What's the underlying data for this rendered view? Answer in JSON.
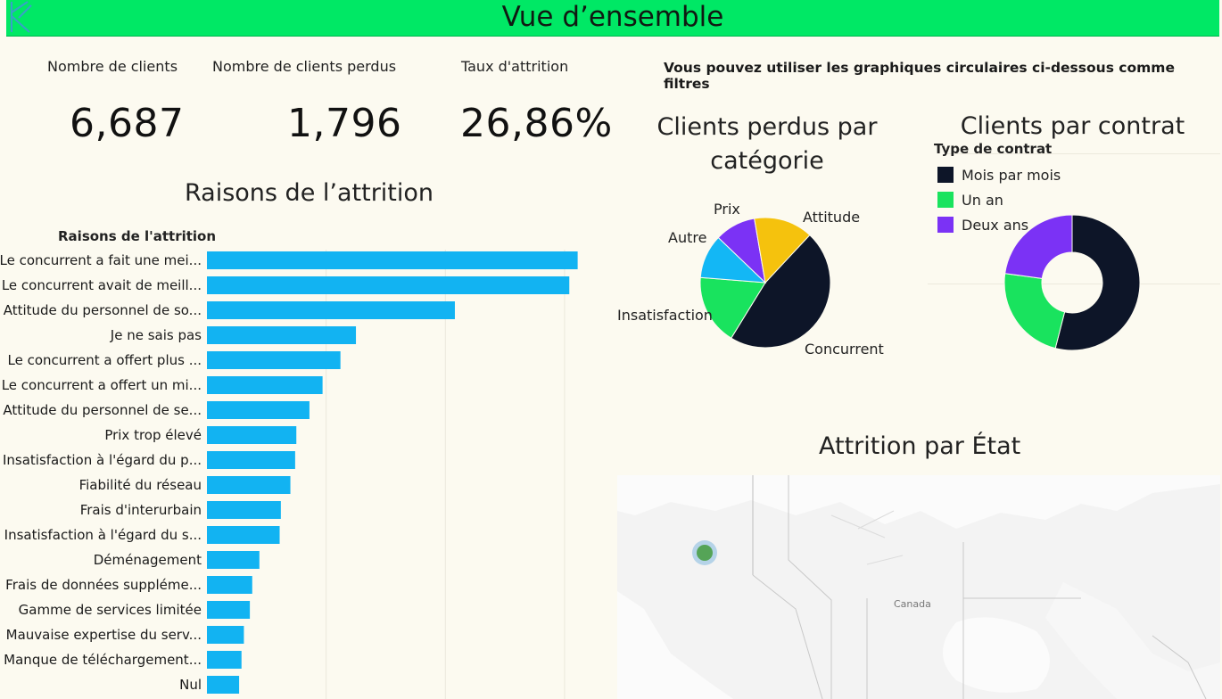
{
  "header": {
    "title": "Vue d’ensemble"
  },
  "kpis": {
    "clients_label": "Nombre de clients",
    "clients_value": "6,687",
    "lost_label": "Nombre de clients perdus",
    "lost_value": "1,796",
    "rate_label": "Taux d'attrition",
    "rate_value": "26,86%"
  },
  "filter_hint": "Vous pouvez utiliser les graphiques circulaires ci-dessous comme filtres",
  "bars": {
    "title": "Raisons de l’attrition",
    "column_header": "Raisons de l'attrition"
  },
  "pie": {
    "title_line1": "Clients perdus par",
    "title_line2": "catégorie"
  },
  "donut": {
    "title": "Clients par contrat",
    "legend_title": "Type de contrat"
  },
  "map": {
    "title": "Attrition par État",
    "country_label": "Canada"
  },
  "colors": {
    "header_green": "#00e865",
    "bar_blue": "#12b3f2",
    "navy": "#0d1528",
    "green": "#19e35e",
    "purple": "#7b32f5",
    "yellow": "#f5c20d",
    "sky": "#13b7f5"
  },
  "chart_data": [
    {
      "type": "bar",
      "orientation": "horizontal",
      "title": "Raisons de l’attrition",
      "xlabel": "",
      "ylabel": "Raisons de l'attrition",
      "categories": [
        "Le concurrent a fait une mei...",
        "Le concurrent avait de meill...",
        "Attitude du personnel de so...",
        "Je ne sais pas",
        "Le concurrent a offert plus ...",
        "Le concurrent a offert un mi...",
        "Attitude du personnel de se...",
        "Prix trop élevé",
        "Insatisfaction à l'égard du p...",
        "Fiabilité du réseau",
        "Frais d'interurbain",
        "Insatisfaction à l'égard du s...",
        "Déménagement",
        "Frais de données suppléme...",
        "Gamme de services limitée",
        "Mauvaise expertise du serv...",
        "Manque de téléchargement...",
        "Nul"
      ],
      "values": [
        311,
        304,
        208,
        125,
        112,
        97,
        86,
        75,
        74,
        70,
        62,
        61,
        44,
        38,
        36,
        31,
        29,
        27
      ],
      "xlim": [
        0,
        330
      ],
      "grid": true
    },
    {
      "type": "pie",
      "title": "Clients perdus par catégorie",
      "labels": [
        "Concurrent",
        "Attitude",
        "Prix",
        "Autre",
        "Insatisfaction"
      ],
      "values": [
        841,
        314,
        196,
        182,
        263
      ],
      "colors": [
        "#0d1528",
        "#19e35e",
        "#13b7f5",
        "#7b32f5",
        "#f5c20d"
      ]
    },
    {
      "type": "pie",
      "title": "Clients par contrat",
      "legend_title": "Type de contrat",
      "legend_position": "top-left",
      "labels": [
        "Mois par mois",
        "Un an",
        "Deux ans"
      ],
      "values": [
        3610,
        1550,
        1527
      ],
      "colors": [
        "#0d1528",
        "#19e35e",
        "#7b32f5"
      ],
      "hole": true
    }
  ]
}
